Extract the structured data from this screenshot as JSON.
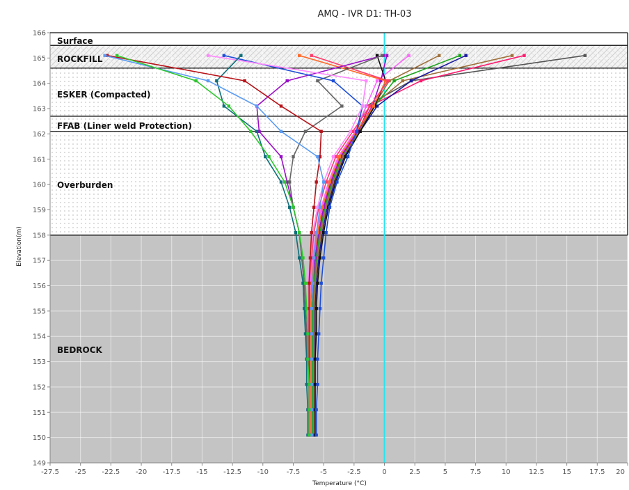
{
  "chart_data": {
    "type": "line",
    "title": "AMQ - IVR D1: TH-03",
    "xlabel": "Temperature (°C)",
    "ylabel": "Elevation(m)",
    "xlim": [
      -27.5,
      20
    ],
    "ylim": [
      149,
      166
    ],
    "xticks": [
      "-27.5",
      "-25",
      "-22.5",
      "-20",
      "-17.5",
      "-15",
      "-12.5",
      "-10",
      "-7.5",
      "-5",
      "-2.5",
      "0",
      "2.5",
      "5",
      "7.5",
      "10",
      "12.5",
      "15",
      "17.5",
      "20"
    ],
    "yticks": [
      "149",
      "150",
      "151",
      "152",
      "153",
      "154",
      "155",
      "156",
      "157",
      "158",
      "159",
      "160",
      "161",
      "162",
      "163",
      "164",
      "165",
      "166"
    ],
    "grid": true,
    "reference_line": {
      "x": 0,
      "color": "#27e4ee"
    },
    "layers": [
      {
        "name": "Surface",
        "top": 166,
        "bottom": 165.5,
        "pattern": "none"
      },
      {
        "name": "ROCKFILL",
        "top": 165.5,
        "bottom": 164.6,
        "pattern": "hatch"
      },
      {
        "name": "ESKER (Compacted)",
        "top": 164.6,
        "bottom": 162.7,
        "pattern": "dots"
      },
      {
        "name": "FFAB (Liner weld Protection)",
        "top": 162.7,
        "bottom": 162.1,
        "pattern": "dots"
      },
      {
        "name": "Overburden",
        "top": 162.1,
        "bottom": 158,
        "pattern": "dots"
      },
      {
        "name": "BEDROCK",
        "top": 158,
        "bottom": 149,
        "pattern": "solid"
      }
    ],
    "depths": [
      165.1,
      164.1,
      163.1,
      162.1,
      161.1,
      160.1,
      159.1,
      158.1,
      157.1,
      156.1,
      155.1,
      154.1,
      153.1,
      152.1,
      151.1,
      150.1
    ],
    "series": [
      {
        "color": "#555555",
        "values": [
          16.5,
          2.2,
          -1.5,
          -2.3,
          -3.6,
          -4.4,
          -5.0,
          -5.4,
          -5.7,
          -5.9,
          -6.0,
          -6.0,
          -6.0,
          -6.0,
          -6.0,
          -6.0
        ]
      },
      {
        "color": "#ff1a6e",
        "values": [
          11.5,
          3.0,
          -1.2,
          -2.2,
          -3.5,
          -4.3,
          -4.9,
          -5.3,
          -5.6,
          -5.8,
          -5.9,
          -5.9,
          -5.9,
          -5.9,
          -5.9,
          -5.9
        ]
      },
      {
        "color": "#a0703a",
        "values": [
          10.5,
          1.5,
          -1.0,
          -2.1,
          -3.4,
          -4.2,
          -4.8,
          -5.2,
          -5.5,
          -5.7,
          -5.8,
          -5.8,
          -5.8,
          -5.8,
          -5.8,
          -5.8
        ]
      },
      {
        "color": "#1a1aa0",
        "values": [
          6.7,
          2.2,
          -0.6,
          -2.0,
          -3.3,
          -4.1,
          -4.7,
          -5.1,
          -5.4,
          -5.6,
          -5.7,
          -5.7,
          -5.7,
          -5.7,
          -5.7,
          -5.8
        ]
      },
      {
        "color": "#1ca51c",
        "values": [
          6.2,
          0.8,
          -0.8,
          -2.0,
          -3.5,
          -4.3,
          -4.9,
          -5.3,
          -5.6,
          -5.8,
          -5.9,
          -5.9,
          -5.9,
          -5.9,
          -5.9,
          -5.9
        ]
      },
      {
        "color": "#a0703a",
        "values": [
          4.5,
          0.4,
          -0.9,
          -2.1,
          -3.4,
          -4.2,
          -4.8,
          -5.2,
          -5.5,
          -5.7,
          -5.8,
          -5.8,
          -5.8,
          -5.8,
          -5.8,
          -5.8
        ]
      },
      {
        "color": "#ff66ff",
        "values": [
          2.0,
          -0.6,
          -1.5,
          -2.4,
          -3.8,
          -4.6,
          -5.2,
          -5.6,
          -5.9,
          -6.1,
          -6.2,
          -6.2,
          -6.2,
          -6.2,
          -6.2,
          -6.2
        ]
      },
      {
        "color": "#9a10c8",
        "values": [
          0.2,
          -0.3,
          -1.0,
          -2.2,
          -3.6,
          -4.4,
          -5.0,
          -5.4,
          -5.7,
          -5.9,
          -6.0,
          -6.0,
          -6.0,
          -6.0,
          -6.0,
          -6.0
        ]
      },
      {
        "color": "#111111",
        "values": [
          -0.6,
          0.1,
          -0.8,
          -2.0,
          -3.2,
          -4.0,
          -4.6,
          -5.0,
          -5.3,
          -5.5,
          -5.6,
          -5.6,
          -5.7,
          -5.7,
          -5.7,
          -5.7
        ]
      },
      {
        "color": "#ff6a2a",
        "values": [
          -7.0,
          0.1,
          -0.9,
          -2.3,
          -3.7,
          -4.5,
          -5.1,
          -5.5,
          -5.8,
          -6.0,
          -6.1,
          -6.1,
          -6.1,
          -6.1,
          -6.1,
          -6.1
        ]
      },
      {
        "color": "#ff3a6a",
        "values": [
          -6.0,
          0.3,
          -1.2,
          -2.6,
          -4.0,
          -4.8,
          -5.4,
          -5.8,
          -6.0,
          -6.2,
          -6.2,
          -6.2,
          -6.2,
          -6.2,
          -6.2,
          -6.2
        ]
      },
      {
        "color": "#9a10c8",
        "values": [
          -0.1,
          -8.0,
          -10.5,
          -10.3,
          -8.5,
          -8.0,
          -7.5,
          -7.0,
          -6.8,
          -6.6,
          -6.5,
          -6.4,
          -6.4,
          -6.3,
          -6.3,
          -6.2
        ]
      },
      {
        "color": "#666666",
        "values": [
          -0.2,
          -5.5,
          -3.5,
          -6.5,
          -7.5,
          -7.8,
          -7.5,
          -7.0,
          -6.8,
          -6.6,
          -6.5,
          -6.4,
          -6.4,
          -6.3,
          -6.3,
          -6.2
        ]
      },
      {
        "color": "#1f4fd8",
        "values": [
          -13.2,
          -4.2,
          -1.8,
          -2.3,
          -3.0,
          -3.9,
          -4.5,
          -4.8,
          -5.0,
          -5.2,
          -5.3,
          -5.4,
          -5.5,
          -5.5,
          -5.6,
          -5.6
        ]
      },
      {
        "color": "#ff88ff",
        "values": [
          -14.5,
          -1.5,
          -1.8,
          -2.8,
          -4.2,
          -5.0,
          -5.5,
          -5.9,
          -6.1,
          -6.3,
          -6.3,
          -6.3,
          -6.3,
          -6.3,
          -6.3,
          -6.3
        ]
      },
      {
        "color": "#0e6f7a",
        "values": [
          -11.8,
          -13.8,
          -13.2,
          -10.5,
          -9.8,
          -8.5,
          -7.8,
          -7.3,
          -7.0,
          -6.7,
          -6.6,
          -6.5,
          -6.4,
          -6.4,
          -6.3,
          -6.3
        ]
      },
      {
        "color": "#b8141a",
        "values": [
          -22.8,
          -11.5,
          -8.5,
          -5.2,
          -5.3,
          -5.6,
          -5.8,
          -6.0,
          -6.1,
          -6.2,
          -6.2,
          -6.2,
          -6.2,
          -6.2,
          -6.2,
          -6.2
        ]
      },
      {
        "color": "#5a9cf5",
        "values": [
          -23.0,
          -14.5,
          -10.5,
          -8.5,
          -5.5,
          -5.0,
          -5.3,
          -5.6,
          -5.8,
          -5.9,
          -6.0,
          -6.0,
          -6.0,
          -6.0,
          -6.0,
          -6.0
        ]
      },
      {
        "color": "#2ec82e",
        "values": [
          -22.0,
          -15.5,
          -12.8,
          -11.0,
          -9.5,
          -8.2,
          -7.5,
          -7.0,
          -6.7,
          -6.5,
          -6.4,
          -6.3,
          -6.3,
          -6.2,
          -6.2,
          -6.2
        ]
      }
    ]
  }
}
